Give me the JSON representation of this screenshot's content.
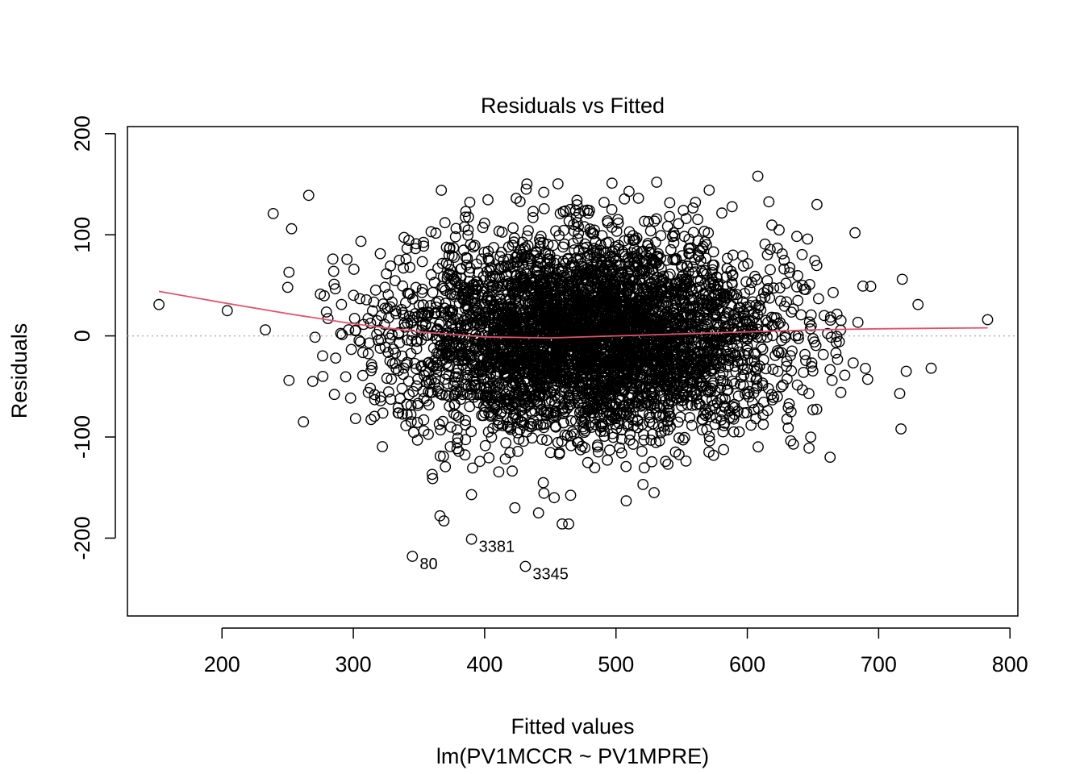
{
  "chart_data": {
    "type": "scatter",
    "title": "Residuals vs Fitted",
    "xlabel": "Fitted values",
    "subtitle": "lm(PV1MCCR ~ PV1MPRE)",
    "ylabel": "Residuals",
    "xlim": [
      128,
      806
    ],
    "ylim": [
      -277,
      207
    ],
    "x_ticks": [
      200,
      300,
      400,
      500,
      600,
      700,
      800
    ],
    "y_ticks": [
      -200,
      -100,
      0,
      100,
      200
    ],
    "y_tick_labels": [
      "-200",
      "-100",
      "0",
      "100",
      "200"
    ],
    "grid": false,
    "legend": "none",
    "reference_line": {
      "y": 0,
      "style": "dotted",
      "color": "#b3b3b3"
    },
    "smoother": {
      "color": "#df536b",
      "x": [
        152,
        200,
        250,
        300,
        350,
        400,
        450,
        500,
        550,
        600,
        650,
        700,
        783
      ],
      "y": [
        44,
        33,
        22,
        12,
        4,
        -1,
        -2,
        0,
        2,
        4,
        6,
        7,
        8
      ]
    },
    "point_style": {
      "shape": "open-circle",
      "stroke": "#000000"
    },
    "cloud": {
      "center_x": 480,
      "sd_x": 72,
      "sd_y": 48,
      "approx_points": 4500
    },
    "extreme_points": [
      {
        "x": 152,
        "y": 31
      },
      {
        "x": 204,
        "y": 25
      },
      {
        "x": 233,
        "y": 6
      },
      {
        "x": 239,
        "y": 121
      },
      {
        "x": 250,
        "y": 48
      },
      {
        "x": 251,
        "y": 63
      },
      {
        "x": 253,
        "y": 106
      },
      {
        "x": 266,
        "y": 139
      },
      {
        "x": 262,
        "y": -85
      },
      {
        "x": 251,
        "y": -44
      },
      {
        "x": 608,
        "y": 158
      },
      {
        "x": 531,
        "y": 152
      },
      {
        "x": 497,
        "y": 151
      },
      {
        "x": 367,
        "y": 144
      },
      {
        "x": 445,
        "y": 142
      },
      {
        "x": 424,
        "y": 136
      },
      {
        "x": 653,
        "y": 130
      },
      {
        "x": 682,
        "y": 102
      },
      {
        "x": 694,
        "y": 49
      },
      {
        "x": 718,
        "y": 56
      },
      {
        "x": 730,
        "y": 31
      },
      {
        "x": 783,
        "y": 16
      },
      {
        "x": 740,
        "y": -32
      },
      {
        "x": 721,
        "y": -35
      },
      {
        "x": 716,
        "y": -57
      },
      {
        "x": 717,
        "y": -92
      },
      {
        "x": 663,
        "y": -120
      },
      {
        "x": 647,
        "y": -111
      },
      {
        "x": 529,
        "y": -155
      },
      {
        "x": 459,
        "y": -186
      },
      {
        "x": 464,
        "y": -186
      },
      {
        "x": 441,
        "y": -175
      },
      {
        "x": 366,
        "y": -178
      },
      {
        "x": 369,
        "y": -183
      },
      {
        "x": 453,
        "y": -160
      },
      {
        "x": 423,
        "y": -170
      },
      {
        "x": 390,
        "y": -157
      },
      {
        "x": 360,
        "y": -137
      },
      {
        "x": 345,
        "y": -218
      },
      {
        "x": 390,
        "y": -201
      },
      {
        "x": 431,
        "y": -228
      }
    ],
    "labeled_points": [
      {
        "label": "80",
        "x": 345,
        "y": -218
      },
      {
        "label": "3381",
        "x": 390,
        "y": -201
      },
      {
        "label": "3345",
        "x": 431,
        "y": -228
      }
    ]
  }
}
